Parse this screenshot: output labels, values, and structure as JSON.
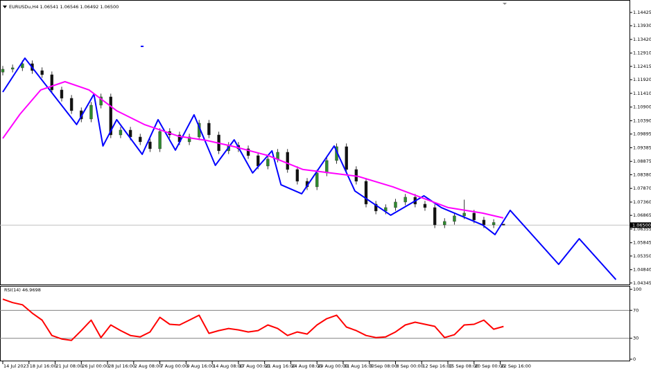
{
  "chart_data": [
    {
      "type": "candlestick",
      "title": "EURUSDu,H4 1.06541 1.06546 1.06492 1.06500",
      "x": [
        0,
        6,
        12,
        18,
        24,
        30,
        36,
        42,
        48,
        54,
        60,
        66,
        72,
        78,
        84,
        90,
        96,
        102,
        108,
        114,
        120,
        126,
        132,
        138,
        144,
        150,
        156,
        162,
        168,
        174,
        180,
        186,
        192,
        198,
        204,
        210,
        216,
        222,
        228,
        234,
        240,
        246,
        252,
        258,
        264,
        270,
        276,
        282,
        288,
        294,
        300,
        306
      ],
      "open": [
        1.122,
        1.12311,
        1.12363,
        1.12517,
        1.12259,
        1.12105,
        1.11538,
        1.11228,
        1.10764,
        1.10455,
        1.1097,
        1.1128,
        1.09862,
        1.10042,
        1.09785,
        1.09604,
        1.09346,
        1.09991,
        1.09862,
        1.09604,
        1.09785,
        1.103,
        1.09862,
        1.09269,
        1.09475,
        1.09346,
        1.09089,
        1.08702,
        1.0896,
        1.09217,
        1.08573,
        1.08135,
        1.07928,
        1.08444,
        1.08908,
        1.09424,
        1.08573,
        1.08135,
        1.07284,
        1.07026,
        1.07155,
        1.07361,
        1.07542,
        1.07284,
        1.07155,
        1.06511,
        1.06639,
        1.06846,
        1.06949,
        1.06691,
        1.06511,
        1.06541
      ],
      "high": [
        1.12431,
        1.12483,
        1.12637,
        1.12637,
        1.12379,
        1.12225,
        1.11658,
        1.11348,
        1.10884,
        1.1109,
        1.114,
        1.114,
        1.10162,
        1.10162,
        1.09905,
        1.09724,
        1.10111,
        1.10111,
        1.09982,
        1.09905,
        1.1042,
        1.1042,
        1.09982,
        1.09595,
        1.09595,
        1.09466,
        1.09209,
        1.0908,
        1.09337,
        1.09337,
        1.08693,
        1.08255,
        1.08564,
        1.09028,
        1.09544,
        1.09544,
        1.08693,
        1.08255,
        1.07404,
        1.07275,
        1.07481,
        1.07662,
        1.07662,
        1.07404,
        1.07275,
        1.06759,
        1.06966,
        1.0745,
        1.07069,
        1.06811,
        1.0672,
        1.06546
      ],
      "low": [
        1.1208,
        1.12191,
        1.12243,
        1.12139,
        1.11985,
        1.11418,
        1.11108,
        1.10644,
        1.10335,
        1.10335,
        1.1085,
        1.09742,
        1.09742,
        1.09665,
        1.09484,
        1.09226,
        1.09226,
        1.09742,
        1.09484,
        1.09484,
        1.09665,
        1.09742,
        1.09149,
        1.09149,
        1.09226,
        1.08969,
        1.08582,
        1.08582,
        1.0884,
        1.08453,
        1.08015,
        1.07808,
        1.07808,
        1.08324,
        1.08788,
        1.08453,
        1.08015,
        1.07164,
        1.06906,
        1.06906,
        1.07035,
        1.07241,
        1.07164,
        1.07035,
        1.06391,
        1.06391,
        1.06519,
        1.06726,
        1.06571,
        1.06391,
        1.06391,
        1.06492
      ],
      "close": [
        1.12311,
        1.12363,
        1.12517,
        1.12259,
        1.12105,
        1.11538,
        1.11228,
        1.10764,
        1.10455,
        1.1097,
        1.1128,
        1.09862,
        1.10042,
        1.09785,
        1.09604,
        1.09346,
        1.09991,
        1.09862,
        1.09604,
        1.09785,
        1.103,
        1.09862,
        1.09269,
        1.09475,
        1.09346,
        1.09089,
        1.08702,
        1.0896,
        1.09217,
        1.08573,
        1.08135,
        1.07928,
        1.08444,
        1.08908,
        1.09424,
        1.08573,
        1.08135,
        1.07284,
        1.07026,
        1.07155,
        1.07361,
        1.07542,
        1.07284,
        1.07155,
        1.06511,
        1.06639,
        1.06846,
        1.06949,
        1.06691,
        1.06511,
        1.066,
        1.065
      ],
      "up_color": "#2f8a2f",
      "down_color": "#111111",
      "wick_color": "#333333",
      "series": [
        {
          "color": "#0000ff",
          "x": [
            0,
            13.5,
            45.1,
            55.7,
            61.2,
            69.6,
            85.2,
            94.9,
            105.5,
            116.9,
            129.9,
            141.4,
            152.7,
            164.5,
            170,
            182.7,
            202.5,
            215.2,
            237.1,
            257.4,
            268,
            293.2,
            300.8,
            310.1,
            339.7,
            352.3,
            374.7
          ],
          "values": [
            1.1146,
            1.12724,
            1.10249,
            1.11383,
            1.09449,
            1.10429,
            1.0914,
            1.10429,
            1.09295,
            1.1061,
            1.08728,
            1.09681,
            1.08444,
            1.09269,
            1.08006,
            1.07671,
            1.09449,
            1.07774,
            1.06871,
            1.07593,
            1.07155,
            1.06511,
            1.0615,
            1.07052,
            1.05041,
            1.05995,
            1.04474
          ]
        },
        {
          "color": "#ff00ff",
          "x": [
            0,
            10.5,
            23.2,
            38,
            52.7,
            69.6,
            86.5,
            107.6,
            124.5,
            141.4,
            162.4,
            183.5,
            200.4,
            217.3,
            238.4,
            255.3,
            272.2,
            293.2,
            305.9
          ],
          "values": [
            1.09733,
            1.10635,
            1.11538,
            1.11847,
            1.11538,
            1.10764,
            1.10249,
            1.0981,
            1.09656,
            1.09424,
            1.09089,
            1.08573,
            1.08444,
            1.08315,
            1.07928,
            1.07542,
            1.07155,
            1.06949,
            1.06768
          ]
        }
      ],
      "current_price": {
        "value": 1.065,
        "label": "1.06500"
      },
      "xlim": [
        -1.7,
        383
      ],
      "ylim": [
        1.0429,
        1.1476
      ],
      "yticks": [
        {
          "value": 1.14425,
          "label": "1.14425"
        },
        {
          "value": 1.1393,
          "label": "1.13930"
        },
        {
          "value": 1.1342,
          "label": "1.13420"
        },
        {
          "value": 1.1291,
          "label": "1.12910"
        },
        {
          "value": 1.12415,
          "label": "1.12415"
        },
        {
          "value": 1.1192,
          "label": "1.11920"
        },
        {
          "value": 1.1141,
          "label": "1.11410"
        },
        {
          "value": 1.109,
          "label": "1.10900"
        },
        {
          "value": 1.1039,
          "label": "1.10390"
        },
        {
          "value": 1.09895,
          "label": "1.09895"
        },
        {
          "value": 1.09385,
          "label": "1.09385"
        },
        {
          "value": 1.08875,
          "label": "1.08875"
        },
        {
          "value": 1.0838,
          "label": "1.08380"
        },
        {
          "value": 1.0787,
          "label": "1.07870"
        },
        {
          "value": 1.0736,
          "label": "1.07360"
        },
        {
          "value": 1.06865,
          "label": "1.06865"
        },
        {
          "value": 1.06355,
          "label": "1.06355"
        },
        {
          "value": 1.05845,
          "label": "1.05845"
        },
        {
          "value": 1.0535,
          "label": "1.05350"
        },
        {
          "value": 1.0484,
          "label": "1.04840"
        },
        {
          "value": 1.04345,
          "label": "1.04345"
        }
      ]
    },
    {
      "type": "line",
      "title": "RSI(14) 46.9698",
      "x": [
        0,
        6,
        12,
        18,
        24,
        30,
        36,
        42,
        48,
        54,
        60,
        66,
        72,
        78,
        84,
        90,
        96,
        102,
        108,
        114,
        120,
        126,
        132,
        138,
        144,
        150,
        156,
        162,
        168,
        174,
        180,
        186,
        192,
        198,
        204,
        210,
        216,
        222,
        228,
        234,
        240,
        246,
        252,
        258,
        264,
        270,
        276,
        282,
        288,
        294,
        300,
        306
      ],
      "values": [
        86,
        81,
        78,
        66,
        56,
        34,
        29,
        27,
        41,
        56,
        31,
        49,
        41,
        34,
        32,
        39,
        60,
        50,
        49,
        56,
        63,
        37,
        41,
        44,
        42,
        39,
        41,
        49,
        44,
        34,
        39,
        36,
        49,
        58,
        63,
        46,
        41,
        34,
        31,
        32,
        39,
        49,
        53,
        50,
        47,
        31,
        35,
        49,
        50,
        56,
        43,
        46.9698
      ],
      "color": "#ff0000",
      "levels": [
        70,
        30
      ],
      "xlim": [
        -1.7,
        383
      ],
      "ylim": [
        -3,
        105
      ],
      "yticks": [
        100,
        70,
        30,
        0
      ],
      "xticks": [
        {
          "value": 0,
          "label": "14 Jul 2023"
        },
        {
          "value": 16,
          "label": "18 Jul 16:00"
        },
        {
          "value": 32,
          "label": "21 Jul 08:00"
        },
        {
          "value": 48,
          "label": "26 Jul 00:00"
        },
        {
          "value": 64,
          "label": "28 Jul 16:00"
        },
        {
          "value": 80,
          "label": "2 Aug 08:00"
        },
        {
          "value": 96,
          "label": "7 Aug 00:00"
        },
        {
          "value": 112,
          "label": "9 Aug 16:00"
        },
        {
          "value": 128,
          "label": "14 Aug 08:00"
        },
        {
          "value": 144,
          "label": "17 Aug 00:00"
        },
        {
          "value": 160,
          "label": "21 Aug 16:00"
        },
        {
          "value": 176,
          "label": "24 Aug 08:00"
        },
        {
          "value": 192,
          "label": "29 Aug 00:00"
        },
        {
          "value": 208,
          "label": "31 Aug 16:00"
        },
        {
          "value": 224,
          "label": "5 Sep 08:00"
        },
        {
          "value": 240,
          "label": "8 Sep 00:00"
        },
        {
          "value": 256,
          "label": "12 Sep 16:00"
        },
        {
          "value": 272,
          "label": "15 Sep 08:00"
        },
        {
          "value": 288,
          "label": "20 Sep 00:00"
        },
        {
          "value": 304,
          "label": "22 Sep 16:00"
        }
      ]
    }
  ]
}
